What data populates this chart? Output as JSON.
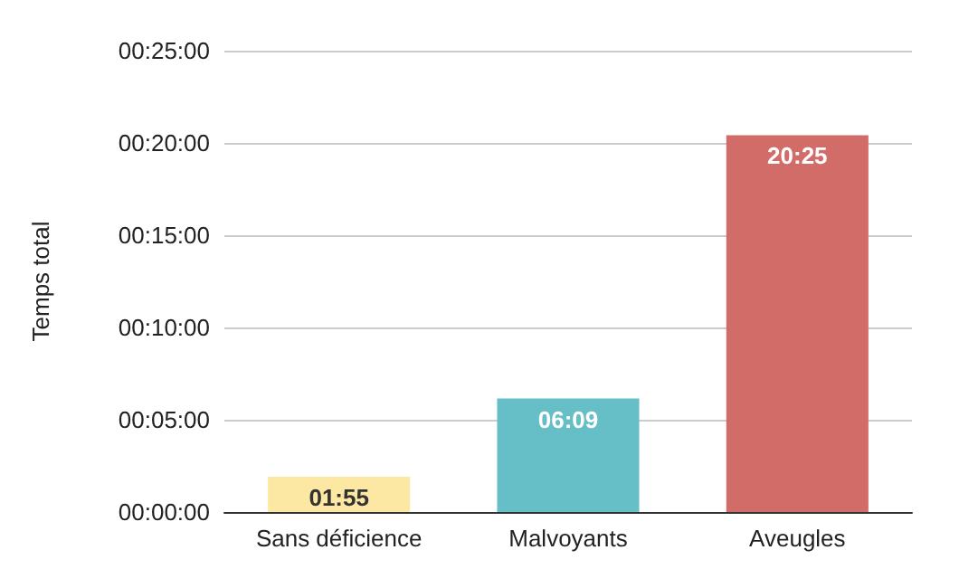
{
  "chart_data": {
    "type": "bar",
    "ylabel": "Temps total",
    "categories": [
      "Sans déficience",
      "Malvoyants",
      "Aveugles"
    ],
    "values": [
      1.9167,
      6.15,
      20.4167
    ],
    "colors": [
      "#fce8a2",
      "#66bec6",
      "#d26c68"
    ],
    "value_labels": [
      "01:55",
      "06:09",
      "20:25"
    ],
    "ylim": [
      0,
      25
    ],
    "yticks": [
      {
        "value": 0,
        "label": "00:00:00"
      },
      {
        "value": 5,
        "label": "00:05:00"
      },
      {
        "value": 10,
        "label": "00:10:00"
      },
      {
        "value": 15,
        "label": "00:15:00"
      },
      {
        "value": 20,
        "label": "00:20:00"
      },
      {
        "value": 25,
        "label": "00:25:00"
      }
    ],
    "grid": "y"
  }
}
